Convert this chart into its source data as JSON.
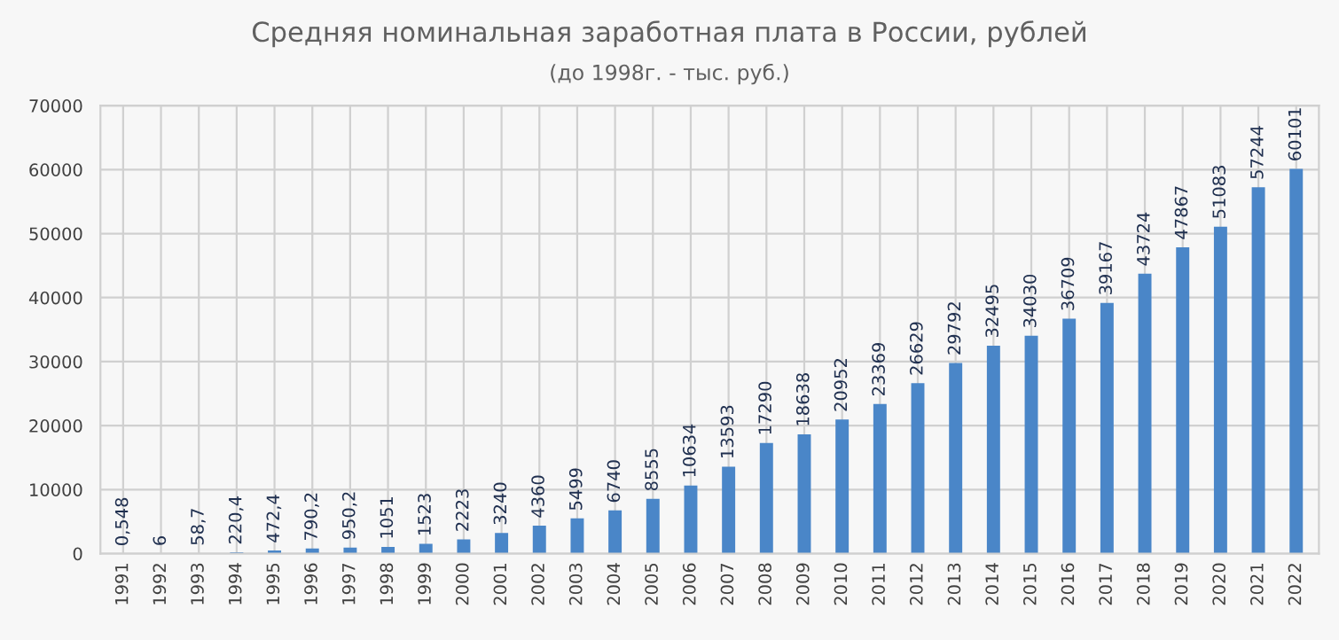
{
  "chart_data": {
    "type": "bar",
    "title": "Средняя номинальная заработная плата в России, рублей",
    "subtitle": "(до 1998г. - тыс. руб.)",
    "categories": [
      "1991",
      "1992",
      "1993",
      "1994",
      "1995",
      "1996",
      "1997",
      "1998",
      "1999",
      "2000",
      "2001",
      "2002",
      "2003",
      "2004",
      "2005",
      "2006",
      "2007",
      "2008",
      "2009",
      "2010",
      "2011",
      "2012",
      "2013",
      "2014",
      "2015",
      "2016",
      "2017",
      "2018",
      "2019",
      "2020",
      "2021",
      "2022"
    ],
    "values": [
      0.548,
      6,
      58.7,
      220.4,
      472.4,
      790.2,
      950.2,
      1051,
      1523,
      2223,
      3240,
      4360,
      5499,
      6740,
      8555,
      10634,
      13593,
      17290,
      18638,
      20952,
      23369,
      26629,
      29792,
      32495,
      34030,
      36709,
      39167,
      43724,
      47867,
      51083,
      57244,
      60101
    ],
    "value_labels": [
      "0,548",
      "6",
      "58,7",
      "220,4",
      "472,4",
      "790,2",
      "950,2",
      "1051",
      "1523",
      "2223",
      "3240",
      "4360",
      "5499",
      "6740",
      "8555",
      "10634",
      "13593",
      "17290",
      "18638",
      "20952",
      "23369",
      "26629",
      "29792",
      "32495",
      "34030",
      "36709",
      "39167",
      "43724",
      "47867",
      "51083",
      "57244",
      "60101"
    ],
    "color": "#4a86c8",
    "ylim": [
      0,
      70000
    ],
    "yticks": [
      0,
      10000,
      20000,
      30000,
      40000,
      50000,
      60000,
      70000
    ],
    "grid": true
  }
}
